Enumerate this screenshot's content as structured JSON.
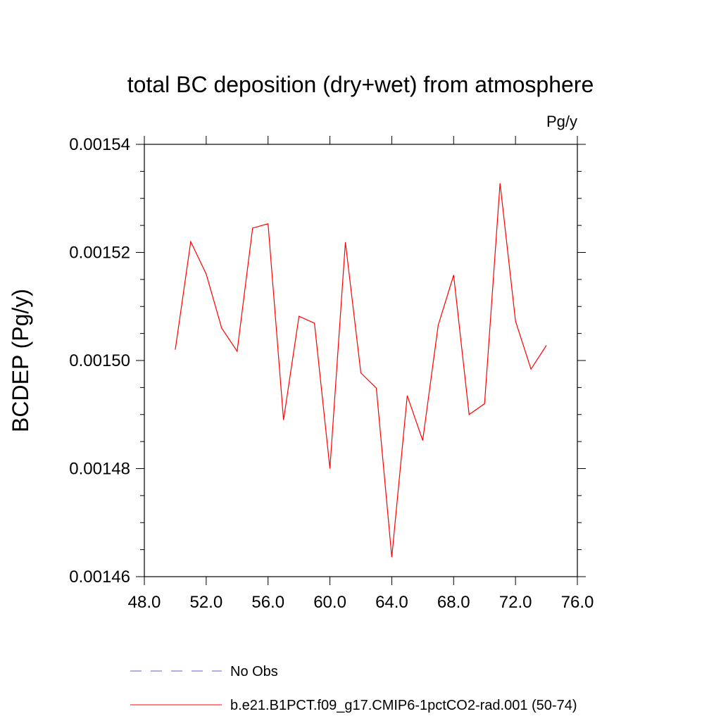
{
  "chart_data": {
    "type": "line",
    "title": "total BC deposition (dry+wet) from atmosphere",
    "units_label": "Pg/y",
    "ylabel": "BCDEP  (Pg/y)",
    "xlabel": "",
    "xlim": [
      48,
      76
    ],
    "ylim": [
      0.00146,
      0.00154
    ],
    "x_ticks": [
      "48.0",
      "52.0",
      "56.0",
      "60.0",
      "64.0",
      "68.0",
      "72.0",
      "76.0"
    ],
    "y_ticks": [
      "0.00146",
      "0.00148",
      "0.00150",
      "0.00152",
      "0.00154"
    ],
    "grid": false,
    "legend_position": "bottom",
    "series": [
      {
        "name": "b.e21.B1PCT.f09_g17.CMIP6-1pctCO2-rad.001 (50-74)",
        "color": "#ff0000",
        "style": "solid",
        "x": [
          50,
          51,
          52,
          53,
          54,
          55,
          56,
          57,
          58,
          59,
          60,
          61,
          62,
          63,
          64,
          65,
          66,
          67,
          68,
          69,
          70,
          71,
          72,
          73,
          74
        ],
        "y": [
          0.001502,
          0.001522,
          0.001516,
          0.001506,
          0.0015017,
          0.0015245,
          0.0015253,
          0.001489,
          0.0015082,
          0.0015069,
          0.00148,
          0.0015219,
          0.0014977,
          0.0014949,
          0.0014636,
          0.0014935,
          0.0014852,
          0.0015065,
          0.0015158,
          0.00149,
          0.001492,
          0.0015328,
          0.0015073,
          0.0014984,
          0.0015028
        ]
      }
    ],
    "legend": [
      {
        "label": "No Obs",
        "color": "#6a5acd",
        "style": "dashed"
      },
      {
        "label": "b.e21.B1PCT.f09_g17.CMIP6-1pctCO2-rad.001 (50-74)",
        "color": "#ff0000",
        "style": "solid"
      }
    ]
  }
}
